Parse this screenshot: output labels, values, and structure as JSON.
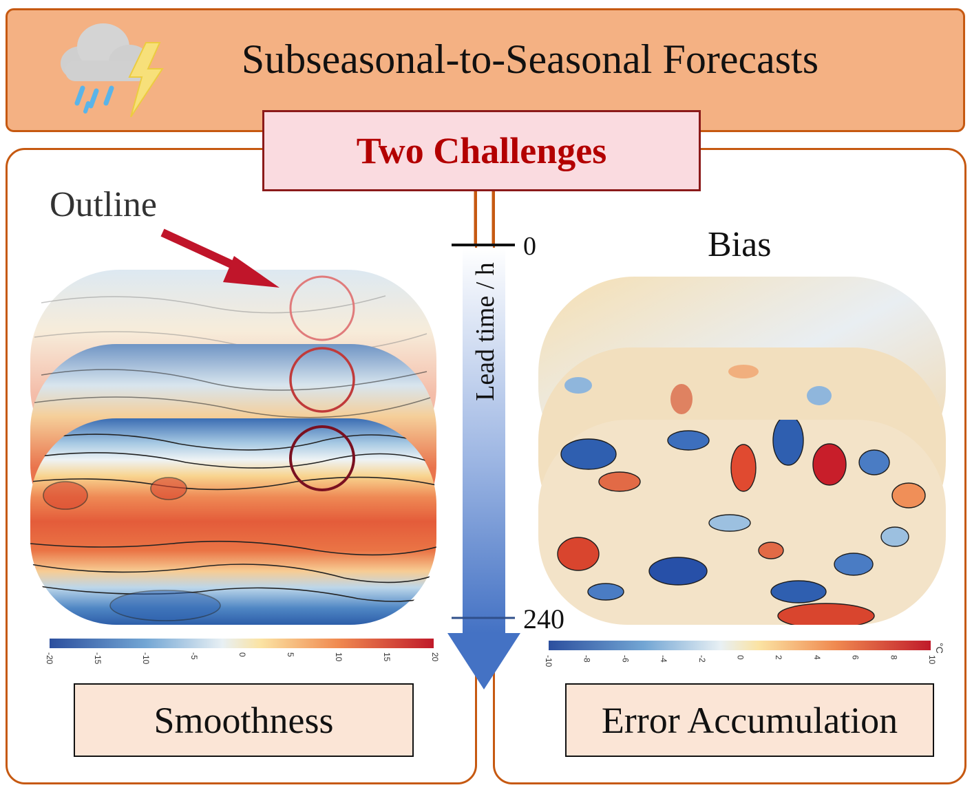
{
  "header": {
    "title": "Subseasonal-to-Seasonal Forecasts",
    "icon": "storm-cloud-icon"
  },
  "center": {
    "challenge_title": "Two Challenges",
    "axis_label": "Lead time / h",
    "tick_start": "0",
    "tick_end": "240"
  },
  "left": {
    "annotation": "Outline",
    "caption": "Smoothness",
    "colorbar_ticks": [
      "-20",
      "-15",
      "-10",
      "-5",
      "0",
      "5",
      "10",
      "15",
      "20"
    ]
  },
  "right": {
    "annotation": "Bias",
    "caption": "Error Accumulation",
    "colorbar_ticks": [
      "-10",
      "-8",
      "-6",
      "-4",
      "-2",
      "0",
      "2",
      "4",
      "6",
      "8",
      "10"
    ],
    "colorbar_unit": "°C"
  },
  "colors": {
    "header_bg": "#f4b183",
    "border": "#c65911",
    "challenge_bg": "#fadbe0",
    "challenge_text": "#b30000",
    "caption_bg": "#fbe5d6",
    "arrow": "#4472c4",
    "annotation_arrow": "#c0152a"
  }
}
